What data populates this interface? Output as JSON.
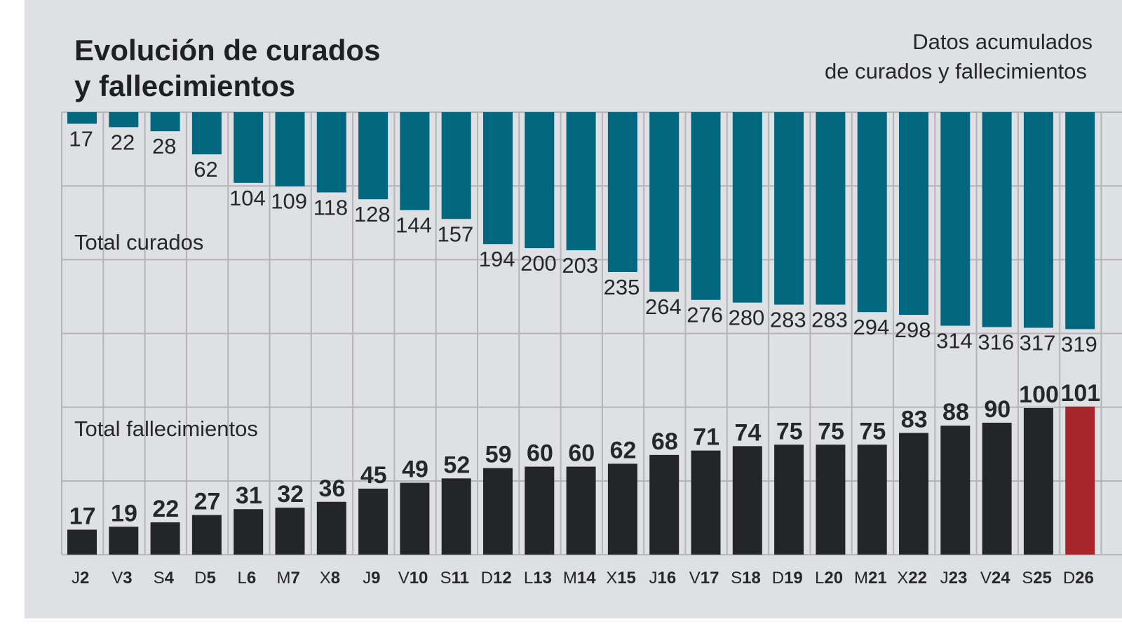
{
  "title_line1": "Evolución de curados",
  "title_line2": "y fallecimientos",
  "subtitle_line1": "Datos acumulados",
  "subtitle_line2": "de curados y fallecimientos",
  "colors": {
    "background": "#dfe0e4",
    "curados": "#00677e",
    "fallecimientos": "#242529",
    "highlight": "#a6262b",
    "grid": "#b3b4b8"
  },
  "chart_data": {
    "type": "bar",
    "title": "Evolución de curados y fallecimientos",
    "subtitle": "Datos acumulados de curados y fallecimientos",
    "categories": [
      "J2",
      "V3",
      "S4",
      "D5",
      "L6",
      "M7",
      "X8",
      "J9",
      "V10",
      "S11",
      "D12",
      "L13",
      "M14",
      "X15",
      "J16",
      "V17",
      "S18",
      "D19",
      "L20",
      "M21",
      "X22",
      "J23",
      "V24",
      "S25",
      "D26"
    ],
    "category_parts": [
      [
        "J",
        "2"
      ],
      [
        "V",
        "3"
      ],
      [
        "S",
        "4"
      ],
      [
        "D",
        "5"
      ],
      [
        "L",
        "6"
      ],
      [
        "M",
        "7"
      ],
      [
        "X",
        "8"
      ],
      [
        "J",
        "9"
      ],
      [
        "V",
        "10"
      ],
      [
        "S",
        "11"
      ],
      [
        "D",
        "12"
      ],
      [
        "L",
        "13"
      ],
      [
        "M",
        "14"
      ],
      [
        "X",
        "15"
      ],
      [
        "J",
        "16"
      ],
      [
        "V",
        "17"
      ],
      [
        "S",
        "18"
      ],
      [
        "D",
        "19"
      ],
      [
        "L",
        "20"
      ],
      [
        "M",
        "21"
      ],
      [
        "X",
        "22"
      ],
      [
        "J",
        "23"
      ],
      [
        "V",
        "24"
      ],
      [
        "S",
        "25"
      ],
      [
        "D",
        "26"
      ]
    ],
    "series": [
      {
        "name": "Total curados",
        "direction": "downward",
        "color": "#00677e",
        "values": [
          17,
          22,
          28,
          62,
          104,
          109,
          118,
          128,
          144,
          157,
          194,
          200,
          203,
          235,
          264,
          276,
          280,
          283,
          283,
          294,
          298,
          314,
          316,
          317,
          319
        ]
      },
      {
        "name": "Total fallecimientos",
        "direction": "upward",
        "color": "#242529",
        "highlight_last": "#a6262b",
        "values": [
          17,
          19,
          22,
          27,
          31,
          32,
          36,
          45,
          49,
          52,
          59,
          60,
          60,
          62,
          68,
          71,
          74,
          75,
          75,
          75,
          83,
          88,
          90,
          100,
          101
        ]
      }
    ],
    "grid": true
  }
}
